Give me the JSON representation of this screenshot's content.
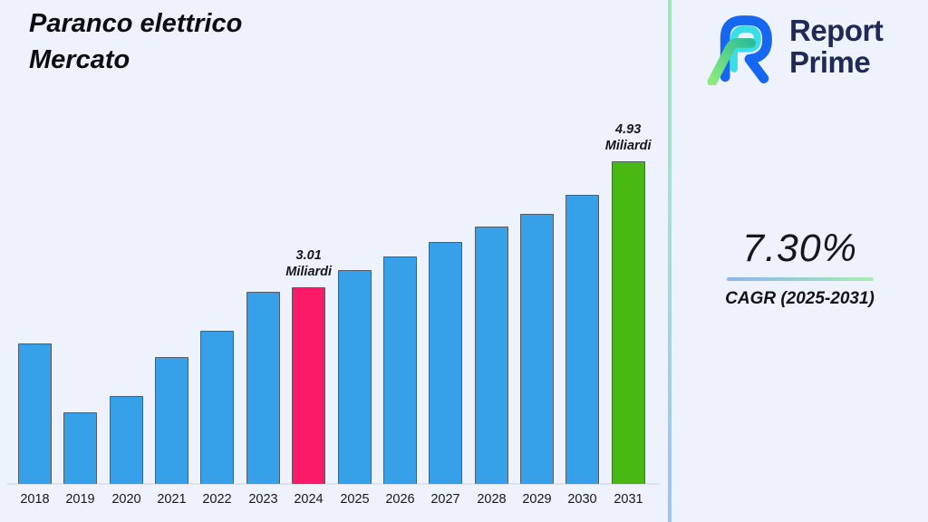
{
  "header": {
    "title_line1": "Paranco elettrico",
    "title_line2": "Mercato"
  },
  "logo": {
    "name": "Report Prime",
    "line1": "Report",
    "line2": "Prime"
  },
  "sidebar": {
    "cagr_value": "7.30%",
    "cagr_label": "CAGR (2025-2031)"
  },
  "chart_data": {
    "type": "bar",
    "title": "Paranco elettrico Mercato",
    "unit": "Miliardi",
    "categories": [
      "2018",
      "2019",
      "2020",
      "2021",
      "2022",
      "2023",
      "2024",
      "2025",
      "2026",
      "2027",
      "2028",
      "2029",
      "2030",
      "2031"
    ],
    "values": [
      2.15,
      1.1,
      1.34,
      1.94,
      2.34,
      2.94,
      3.01,
      3.27,
      3.48,
      3.7,
      3.93,
      4.13,
      4.42,
      4.93
    ],
    "ylim": [
      0,
      5.1
    ],
    "grid": false,
    "legend": false,
    "xlabel": "",
    "ylabel": "",
    "annotations": [
      {
        "year": "2024",
        "value": "3.01",
        "unit": "Miliardi"
      },
      {
        "year": "2031",
        "value": "4.93",
        "unit": "Miliardi"
      }
    ],
    "highlight_colors": {
      "2024": "#FB1A68",
      "2031": "#49B813"
    }
  },
  "colors": {
    "background": "#EDF2FC",
    "bar_default": "#36A0E8",
    "bar_highlight_2024": "#FB1A68",
    "bar_highlight_2031": "#49B813",
    "bar_border": "#535c66",
    "logo_navy": "#1F2A56",
    "logo_blue": "#1566F1",
    "logo_cyan": "#38DEE8",
    "logo_green_light": "#8DEB7D",
    "logo_green_dark": "#2EBE97",
    "divider_top": "#9CE7B4",
    "divider_bottom": "#9FC2EF",
    "underline_left": "#8FB2F0",
    "underline_right": "#A9EDB3"
  }
}
